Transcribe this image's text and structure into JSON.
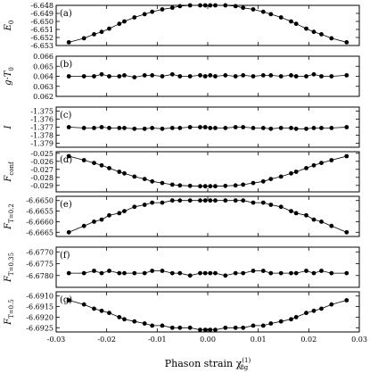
{
  "chart_data": {
    "type": "line",
    "xlabel": "Phason strain χ",
    "xlabel_sub": "8g",
    "xlabel_sup": "(1)",
    "xlim": [
      -0.03,
      0.03
    ],
    "xticks": [
      "-0.03",
      "-0.02",
      "-0.01",
      "0.00",
      "0.01",
      "0.02",
      "0.03"
    ],
    "x": [
      -0.0275,
      -0.0245,
      -0.0225,
      -0.021,
      -0.0195,
      -0.0175,
      -0.0165,
      -0.0145,
      -0.0125,
      -0.011,
      -0.009,
      -0.007,
      -0.0055,
      -0.0035,
      -0.0015,
      -0.0005,
      0.0005,
      0.0015,
      0.0035,
      0.0055,
      0.007,
      0.009,
      0.011,
      0.0125,
      0.0145,
      0.0165,
      0.0175,
      0.0195,
      0.021,
      0.0225,
      0.0245,
      0.0275
    ],
    "panels": [
      {
        "label": "(a)",
        "ylabel": "E",
        "ylabel_sub": "0",
        "ylim": [
          -6.653,
          -6.648
        ],
        "yticks": [
          "-6.648",
          "-6.649",
          "-6.650",
          "-6.651",
          "-6.652",
          "-6.653"
        ],
        "values": [
          -6.6526,
          -6.6521,
          -6.6516,
          -6.6513,
          -6.6509,
          -6.6503,
          -6.65,
          -6.6495,
          -6.6491,
          -6.6488,
          -6.6485,
          -6.6483,
          -6.6481,
          -6.648,
          -6.648,
          -6.648,
          -6.648,
          -6.648,
          -6.648,
          -6.6481,
          -6.6483,
          -6.6485,
          -6.6488,
          -6.6491,
          -6.6495,
          -6.65,
          -6.6503,
          -6.6509,
          -6.6513,
          -6.6516,
          -6.6521,
          -6.6526
        ]
      },
      {
        "label": "(b)",
        "ylabel": "g·T",
        "ylabel_sub": "0",
        "ylim": [
          0.062,
          0.066
        ],
        "yticks": [
          "0.066",
          "0.065",
          "0.064",
          "0.063",
          "0.062"
        ],
        "values": [
          0.064,
          0.064,
          0.064,
          0.0642,
          0.064,
          0.064,
          0.0641,
          0.0639,
          0.0641,
          0.0641,
          0.064,
          0.0642,
          0.064,
          0.064,
          0.0641,
          0.064,
          0.0641,
          0.064,
          0.0641,
          0.064,
          0.0641,
          0.064,
          0.0641,
          0.0641,
          0.064,
          0.0641,
          0.064,
          0.064,
          0.0642,
          0.064,
          0.064,
          0.0641
        ]
      },
      {
        "label": "(c)",
        "ylabel": "I",
        "ylabel_sub": "",
        "ylim": [
          -1.3795,
          -1.3745
        ],
        "yticks": [
          "-1.375",
          "-1.376",
          "-1.377",
          "-1.378",
          "-1.379"
        ],
        "values": [
          -1.377,
          -1.3771,
          -1.3771,
          -1.377,
          -1.3771,
          -1.3771,
          -1.3771,
          -1.3772,
          -1.3772,
          -1.3771,
          -1.3772,
          -1.3771,
          -1.3771,
          -1.377,
          -1.377,
          -1.377,
          -1.3771,
          -1.3771,
          -1.3771,
          -1.377,
          -1.377,
          -1.3771,
          -1.3771,
          -1.3772,
          -1.3771,
          -1.3771,
          -1.3772,
          -1.3772,
          -1.3771,
          -1.3771,
          -1.3771,
          -1.377
        ]
      },
      {
        "label": "(d)",
        "ylabel": "F",
        "ylabel_sub": "conf",
        "ylim": [
          -0.0298,
          -0.0248
        ],
        "yticks": [
          "-0.025",
          "-0.026",
          "-0.027",
          "-0.028",
          "-0.029"
        ],
        "values": [
          -0.02535,
          -0.02585,
          -0.0262,
          -0.0265,
          -0.02685,
          -0.0273,
          -0.0275,
          -0.0279,
          -0.0282,
          -0.0285,
          -0.0287,
          -0.0289,
          -0.029,
          -0.02905,
          -0.0291,
          -0.0291,
          -0.0291,
          -0.0291,
          -0.02905,
          -0.029,
          -0.0289,
          -0.0287,
          -0.0285,
          -0.0282,
          -0.0279,
          -0.0275,
          -0.0273,
          -0.02685,
          -0.0265,
          -0.0262,
          -0.02585,
          -0.02535
        ]
      },
      {
        "label": "(e)",
        "ylabel": "F",
        "ylabel_sub": "T=0.2",
        "ylim": [
          -6.6667,
          -6.6648
        ],
        "yticks": [
          "-6.6650",
          "-6.6655",
          "-6.6660",
          "-6.6665"
        ],
        "values": [
          -6.6665,
          -6.6662,
          -6.666,
          -6.6659,
          -6.6657,
          -6.6656,
          -6.6655,
          -6.6653,
          -6.6652,
          -6.6651,
          -6.6651,
          -6.665,
          -6.665,
          -6.665,
          -6.665,
          -6.665,
          -6.665,
          -6.665,
          -6.665,
          -6.665,
          -6.665,
          -6.6651,
          -6.6651,
          -6.6652,
          -6.6653,
          -6.6655,
          -6.6656,
          -6.6657,
          -6.6659,
          -6.666,
          -6.6662,
          -6.6665
        ]
      },
      {
        "label": "(f)",
        "ylabel": "F",
        "ylabel_sub": "T=0.35",
        "ylim": [
          -6.6785,
          -6.6768
        ],
        "yticks": [
          "-6.6770",
          "-6.6775",
          "-6.6780"
        ],
        "values": [
          -6.6779,
          -6.6779,
          -6.6778,
          -6.6779,
          -6.6778,
          -6.6779,
          -6.6779,
          -6.6779,
          -6.6779,
          -6.6778,
          -6.6778,
          -6.6779,
          -6.6779,
          -6.678,
          -6.6779,
          -6.6779,
          -6.6779,
          -6.6779,
          -6.678,
          -6.6779,
          -6.6779,
          -6.6778,
          -6.6778,
          -6.6779,
          -6.6779,
          -6.6779,
          -6.6779,
          -6.6778,
          -6.6779,
          -6.6778,
          -6.6779,
          -6.6779
        ]
      },
      {
        "label": "(g)",
        "ylabel": "F",
        "ylabel_sub": "T=0.5",
        "ylim": [
          -6.6927,
          -6.6908
        ],
        "yticks": [
          "-6.6910",
          "-6.6915",
          "-6.6920",
          "-6.6925"
        ],
        "values": [
          -6.6912,
          -6.6914,
          -6.6916,
          -6.6917,
          -6.6918,
          -6.692,
          -6.6921,
          -6.6922,
          -6.6923,
          -6.6924,
          -6.6924,
          -6.6925,
          -6.6925,
          -6.6925,
          -6.6926,
          -6.6926,
          -6.6926,
          -6.6926,
          -6.6925,
          -6.6925,
          -6.6925,
          -6.6924,
          -6.6924,
          -6.6923,
          -6.6922,
          -6.6921,
          -6.692,
          -6.6918,
          -6.6917,
          -6.6916,
          -6.6914,
          -6.6912
        ]
      }
    ]
  }
}
